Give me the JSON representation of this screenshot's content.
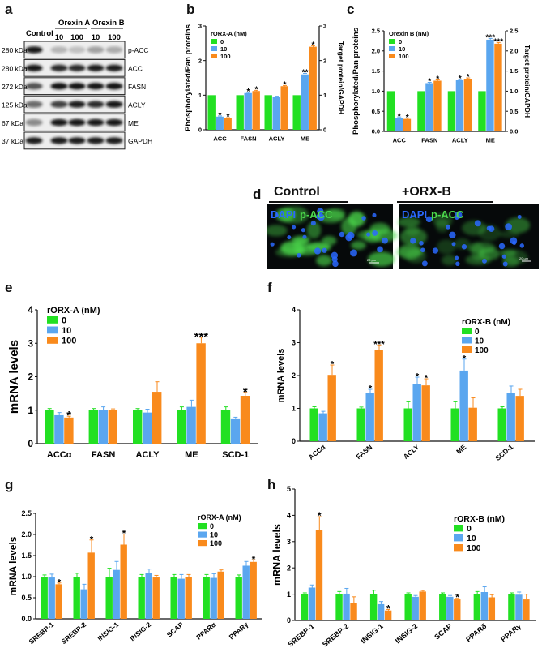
{
  "colors": {
    "c0": "#22e022",
    "c10": "#5aa6ef",
    "c100": "#f98a1c",
    "dapi": "#2a68ff",
    "pacc": "#4cd94c"
  },
  "panel_labels": {
    "a": "a",
    "b": "b",
    "c": "c",
    "d": "d",
    "e": "e",
    "f": "f",
    "g": "g",
    "h": "h"
  },
  "blot": {
    "groups": [
      "Control",
      "Orexin A",
      "Orexin B"
    ],
    "doses": [
      "10",
      "100",
      "10",
      "100"
    ],
    "rows": [
      {
        "mw": "280 kDa",
        "label": "p-ACC"
      },
      {
        "mw": "280 kDa",
        "label": "ACC"
      },
      {
        "mw": "272 kDa",
        "label": "FASN"
      },
      {
        "mw": "125 kDa",
        "label": "ACLY"
      },
      {
        "mw": "67 kDa",
        "label": "ME"
      },
      {
        "mw": "37 kDa",
        "label": "GAPDH"
      }
    ]
  },
  "micro": {
    "left_title": "Control",
    "right_title": "+ORX-B",
    "dapi": "DAPI",
    "pacc": "p-ACC",
    "scale": "20 µm"
  },
  "chart_data": [
    {
      "id": "b",
      "type": "bar",
      "categories": [
        "ACC",
        "FASN",
        "ACLY",
        "ME"
      ],
      "legend_title": "rORX-A (nM)",
      "series": [
        {
          "name": "0",
          "values": [
            1,
            1,
            1,
            1
          ]
        },
        {
          "name": "10",
          "values": [
            0.38,
            1.06,
            0.95,
            1.6
          ]
        },
        {
          "name": "100",
          "values": [
            0.33,
            1.12,
            1.26,
            2.4
          ]
        }
      ],
      "errors": [
        [
          0,
          0,
          0,
          0
        ],
        [
          0.02,
          0.02,
          0.02,
          0.03
        ],
        [
          0.02,
          0.02,
          0.02,
          0.03
        ]
      ],
      "stars": [
        [
          "",
          "",
          "",
          ""
        ],
        [
          "*",
          "*",
          "",
          "**"
        ],
        [
          "*",
          "*",
          "*",
          "*"
        ]
      ],
      "ylabel": "Phosphorylated/Pan proteins",
      "ylim": [
        0,
        3
      ],
      "yticks": [
        0,
        1,
        2,
        3
      ],
      "ytick_labels": [
        "0",
        "1",
        "2",
        "3"
      ],
      "y2label": "Target protein/GAPDH",
      "y2ticks": [
        0,
        1,
        2,
        3
      ],
      "y2tick_labels": [
        "0",
        "1",
        "2",
        "3"
      ]
    },
    {
      "id": "c",
      "type": "bar",
      "categories": [
        "ACC",
        "FASN",
        "ACLY",
        "ME"
      ],
      "legend_title": "Orexin B (nM)",
      "series": [
        {
          "name": "0",
          "values": [
            1,
            1,
            1,
            1
          ]
        },
        {
          "name": "10",
          "values": [
            0.34,
            1.2,
            1.27,
            2.28
          ]
        },
        {
          "name": "100",
          "values": [
            0.31,
            1.26,
            1.31,
            2.18
          ]
        }
      ],
      "errors": [
        [
          0,
          0,
          0,
          0
        ],
        [
          0.02,
          0.02,
          0.02,
          0.03
        ],
        [
          0.02,
          0.02,
          0.02,
          0.03
        ]
      ],
      "stars": [
        [
          "",
          "",
          "",
          ""
        ],
        [
          "*",
          "*",
          "*",
          "***"
        ],
        [
          "*",
          "*",
          "*",
          "***"
        ]
      ],
      "ylabel": "Phosphorylated/Pan proteins",
      "ylim": [
        0,
        2.5
      ],
      "yticks": [
        0,
        0.5,
        1,
        1.5,
        2,
        2.5
      ],
      "ytick_labels": [
        "0.0",
        "0.5",
        "1.0",
        "1.5",
        "2.0",
        "2.5"
      ],
      "y2label": "Target protein/GAPDH",
      "y2ticks": [
        0,
        0.5,
        1,
        1.5,
        2,
        2.5
      ],
      "y2tick_labels": [
        "0.0",
        "0.5",
        "1.0",
        "1.5",
        "2.0",
        "2.5"
      ]
    },
    {
      "id": "e",
      "type": "bar",
      "categories": [
        "ACCα",
        "FASN",
        "ACLY",
        "ME",
        "SCD-1"
      ],
      "legend_title": "rORX-A (nM)",
      "series": [
        {
          "name": "0",
          "values": [
            1,
            1,
            1,
            1,
            1
          ]
        },
        {
          "name": "10",
          "values": [
            0.85,
            1,
            0.93,
            1.1,
            0.73
          ]
        },
        {
          "name": "100",
          "values": [
            0.78,
            1.01,
            1.55,
            3.0,
            1.43
          ]
        }
      ],
      "errors": [
        [
          0.05,
          0.05,
          0.05,
          0.1,
          0.1
        ],
        [
          0.08,
          0.1,
          0.1,
          0.2,
          0.06
        ],
        [
          0.04,
          0.03,
          0.3,
          0.18,
          0.1
        ]
      ],
      "stars": [
        [
          "",
          "",
          "",
          "",
          ""
        ],
        [
          "",
          "",
          "",
          "",
          ""
        ],
        [
          "*",
          "",
          "",
          "***",
          "*"
        ]
      ],
      "ylabel": "mRNA levels",
      "ylim": [
        0,
        4
      ],
      "yticks": [
        0,
        1,
        2,
        3,
        4
      ],
      "ytick_labels": [
        "0",
        "1",
        "2",
        "3",
        "4"
      ]
    },
    {
      "id": "f",
      "type": "bar",
      "categories": [
        "ACCα",
        "FASN",
        "ACLY",
        "ME",
        "SCD-1"
      ],
      "legend_title": "rORX-B (nM)",
      "series": [
        {
          "name": "0",
          "values": [
            1,
            1,
            1,
            1,
            1
          ]
        },
        {
          "name": "10",
          "values": [
            0.85,
            1.48,
            1.75,
            2.15,
            1.48
          ]
        },
        {
          "name": "100",
          "values": [
            2.02,
            2.78,
            1.7,
            1.02,
            1.38
          ]
        }
      ],
      "errors": [
        [
          0.05,
          0.04,
          0.2,
          0.2,
          0.05
        ],
        [
          0.06,
          0.1,
          0.2,
          0.35,
          0.2
        ],
        [
          0.3,
          0.15,
          0.2,
          0.3,
          0.2
        ]
      ],
      "stars": [
        [
          "",
          "",
          "",
          "",
          ""
        ],
        [
          "",
          "*",
          "*",
          "*",
          ""
        ],
        [
          "*",
          "***",
          "*",
          "",
          ""
        ]
      ],
      "ylabel": "mRNA levels",
      "ylim": [
        0,
        4
      ],
      "yticks": [
        0,
        1,
        2,
        3,
        4
      ],
      "ytick_labels": [
        "0",
        "1",
        "2",
        "3",
        "4"
      ]
    },
    {
      "id": "g",
      "type": "bar",
      "categories": [
        "SREBP-1",
        "SREBP-2",
        "INSIG-1",
        "INSIG-2",
        "SCAP",
        "PPARα",
        "PPARγ"
      ],
      "legend_title": "rORX-A (nM)",
      "series": [
        {
          "name": "0",
          "values": [
            1,
            1,
            1,
            1,
            1,
            1,
            1
          ]
        },
        {
          "name": "10",
          "values": [
            0.98,
            0.7,
            1.16,
            1.08,
            0.95,
            0.97,
            1.26
          ]
        },
        {
          "name": "100",
          "values": [
            0.82,
            1.57,
            1.76,
            0.98,
            1.0,
            1.12,
            1.35
          ]
        }
      ],
      "errors": [
        [
          0.04,
          0.08,
          0.2,
          0.05,
          0.05,
          0.05,
          0.04
        ],
        [
          0.08,
          0.12,
          0.2,
          0.1,
          0.1,
          0.1,
          0.1
        ],
        [
          0.03,
          0.3,
          0.25,
          0.05,
          0.05,
          0.04,
          0.05
        ]
      ],
      "stars": [
        [
          "",
          "",
          "",
          "",
          "",
          "",
          ""
        ],
        [
          "",
          "",
          "",
          "",
          "",
          "",
          ""
        ],
        [
          "*",
          "*",
          "*",
          "",
          "",
          "",
          "*"
        ]
      ],
      "ylabel": "mRNA levels",
      "ylim": [
        0,
        2.5
      ],
      "yticks": [
        0,
        0.5,
        1,
        1.5,
        2,
        2.5
      ],
      "ytick_labels": [
        "0.0",
        "0.5",
        "1.0",
        "1.5",
        "2.0",
        "2.5"
      ]
    },
    {
      "id": "h",
      "type": "bar",
      "categories": [
        "SREBP-1",
        "SREBP-2",
        "INSIG-1",
        "INSIG-2",
        "SCAP",
        "PPARδ",
        "PPARγ"
      ],
      "legend_title": "rORX-B (nM)",
      "series": [
        {
          "name": "0",
          "values": [
            1,
            1,
            1,
            1,
            1,
            1,
            1
          ]
        },
        {
          "name": "10",
          "values": [
            1.25,
            1.02,
            0.62,
            0.9,
            0.9,
            1.08,
            0.98
          ]
        },
        {
          "name": "100",
          "values": [
            3.45,
            0.65,
            0.38,
            1.1,
            0.8,
            0.88,
            0.8
          ]
        }
      ],
      "errors": [
        [
          0.05,
          0.1,
          0.15,
          0.05,
          0.05,
          0.1,
          0.05
        ],
        [
          0.1,
          0.2,
          0.1,
          0.05,
          0.05,
          0.2,
          0.1
        ],
        [
          0.5,
          0.25,
          0.04,
          0.04,
          0.04,
          0.1,
          0.2
        ]
      ],
      "stars": [
        [
          "",
          "",
          "",
          "",
          "",
          "",
          ""
        ],
        [
          "",
          "",
          "",
          "",
          "",
          "",
          ""
        ],
        [
          "*",
          "",
          "*",
          "",
          "*",
          "",
          ""
        ]
      ],
      "ylabel": "mRNA levels",
      "ylim": [
        0,
        5
      ],
      "yticks": [
        0,
        1,
        2,
        3,
        4,
        5
      ],
      "ytick_labels": [
        "0",
        "1",
        "2",
        "3",
        "4",
        "5"
      ]
    }
  ]
}
